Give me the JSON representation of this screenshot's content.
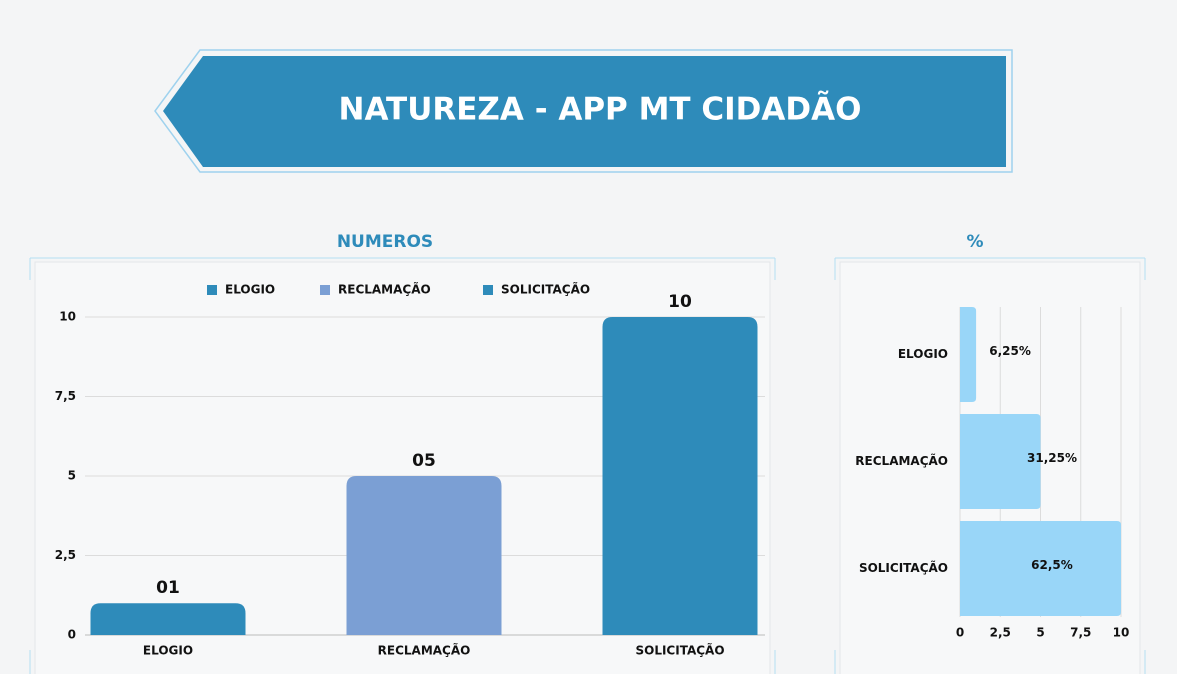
{
  "header": {
    "title": "NATUREZA - APP MT CIDADÃO"
  },
  "chart_data": [
    {
      "type": "bar",
      "title": "NUMEROS",
      "categories": [
        "ELOGIO",
        "RECLAMAÇÃO",
        "SOLICITAÇÃO"
      ],
      "values": [
        1,
        5,
        10
      ],
      "value_labels": [
        "01",
        "05",
        "10"
      ],
      "colors": [
        "#2e8bba",
        "#7b9fd4",
        "#2e8bba"
      ],
      "ylim": [
        0,
        10
      ],
      "yticks": [
        0,
        {
          "value": 2.5,
          "label": "2,5"
        },
        5,
        {
          "value": 7.5,
          "label": "7,5"
        },
        10
      ],
      "grid": true,
      "legend": "top"
    },
    {
      "type": "hbar",
      "title": "%",
      "categories": [
        "ELOGIO",
        "RECLAMAÇÃO",
        "SOLICITAÇÃO"
      ],
      "values": [
        1,
        5,
        10
      ],
      "bar_labels": [
        "6,25%",
        "31,25%",
        "62,5%"
      ],
      "color": "#99d6f8",
      "xlim": [
        0,
        10
      ],
      "xticks": [
        0,
        {
          "value": 2.5,
          "label": "2,5"
        },
        5,
        {
          "value": 7.5,
          "label": "7,5"
        },
        10
      ],
      "grid": true
    }
  ]
}
